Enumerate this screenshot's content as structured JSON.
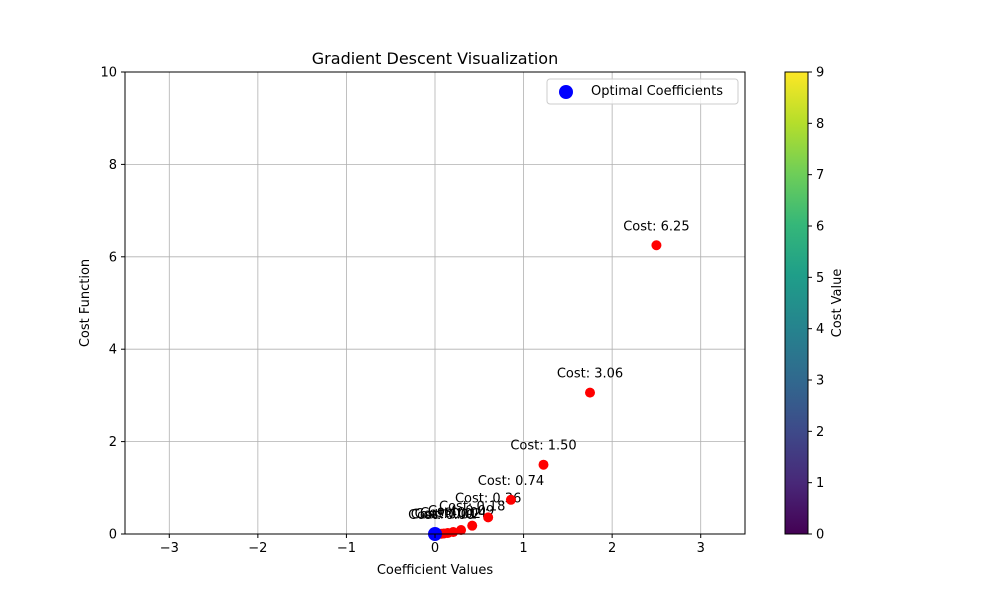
{
  "chart_data": {
    "type": "scatter",
    "title": "Gradient Descent Visualization",
    "xlabel": "Coefficient Values",
    "ylabel": "Cost Function",
    "xlim": [
      -3.5,
      3.5
    ],
    "ylim": [
      0,
      10
    ],
    "xticks": [
      -3,
      -2,
      -1,
      0,
      1,
      2,
      3
    ],
    "yticks": [
      0,
      2,
      4,
      6,
      8,
      10
    ],
    "grid": true,
    "legend": {
      "position": "top-right",
      "entries": [
        "Optimal Coefficients"
      ]
    },
    "colors": {
      "path": "#ff0000",
      "optimal": "#0000ff"
    },
    "series": [
      {
        "marker": "red-dot",
        "x": [
          2.5,
          1.75,
          1.225,
          0.8575,
          0.6003,
          0.4202,
          0.2941,
          0.2059,
          0.1441,
          0.1009,
          0.0706
        ],
        "y": [
          6.25,
          3.06,
          1.5,
          0.74,
          0.36,
          0.18,
          0.0865,
          0.0424,
          0.0208,
          0.0102,
          0.005
        ],
        "labels": [
          "Cost: 6.25",
          "Cost: 3.06",
          "Cost: 1.50",
          "Cost: 0.74",
          "Cost: 0.36",
          "Cost: 0.18",
          "Cost: 0.09",
          "Cost: 0.04",
          "Cost: 0.02",
          "Cost: 0.01",
          "Cost: 0.00"
        ]
      },
      {
        "name": "Optimal Coefficients",
        "marker": "blue-dot",
        "x": [
          0
        ],
        "y": [
          0
        ]
      }
    ],
    "colorbar": {
      "label": "Cost Value",
      "range": [
        0,
        9
      ],
      "ticks": [
        0,
        1,
        2,
        3,
        4,
        5,
        6,
        7,
        8,
        9
      ],
      "colormap": "viridis"
    }
  }
}
